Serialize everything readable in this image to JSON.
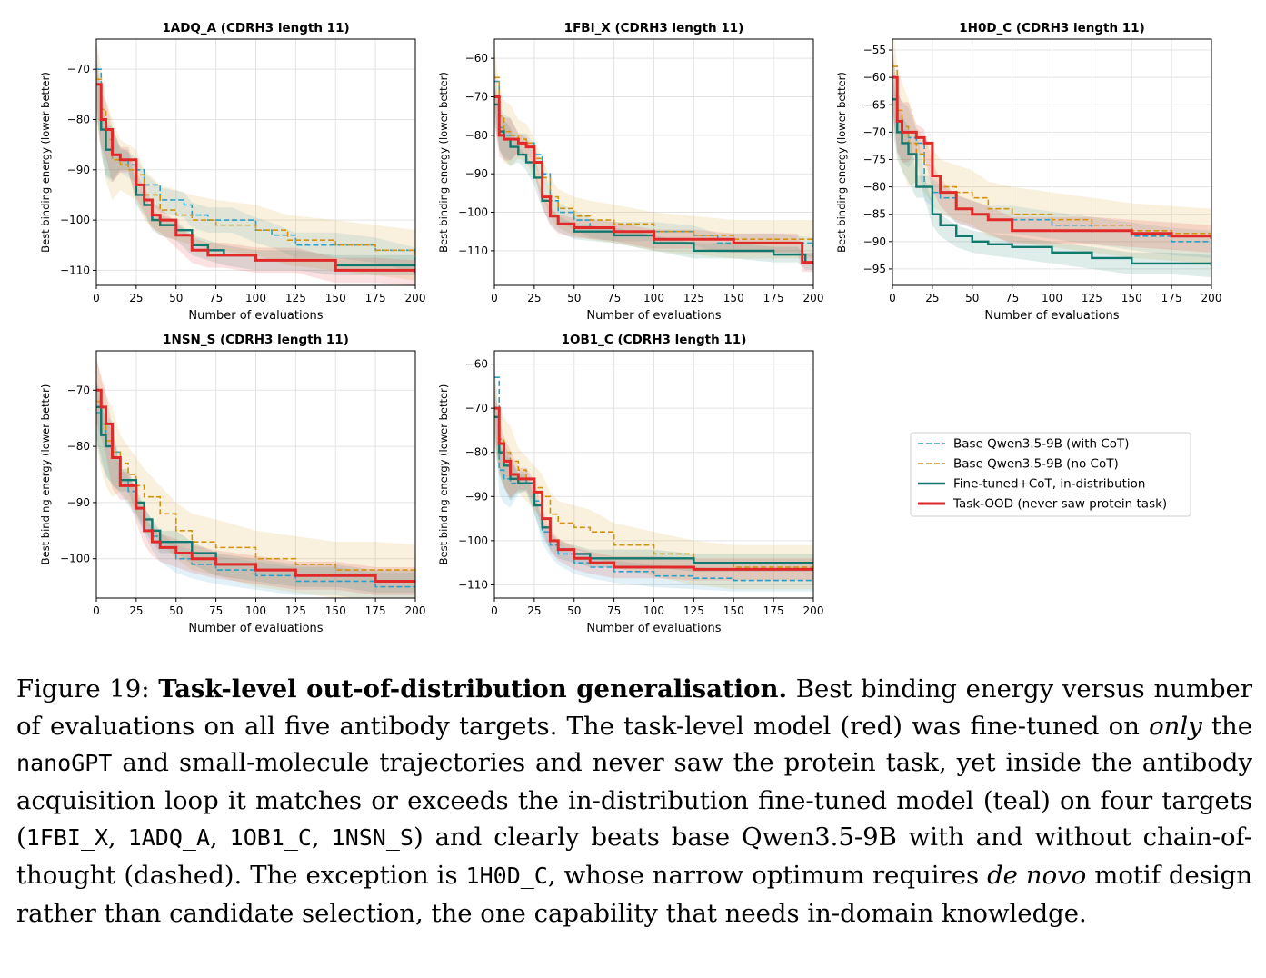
{
  "legend": {
    "entries": [
      {
        "label": "Base Qwen3.5-9B (with CoT)",
        "color": "#2a9fc9",
        "style": "dashed"
      },
      {
        "label": "Base Qwen3.5-9B (no CoT)",
        "color": "#d4920f",
        "style": "dashed"
      },
      {
        "label": "Fine-tuned+CoT, in-distribution",
        "color": "#12776d",
        "style": "solid"
      },
      {
        "label": "Task-OOD (never saw protein task)",
        "color": "#e02a2a",
        "style": "solid"
      }
    ]
  },
  "chart_data": [
    {
      "type": "line",
      "title": "1ADQ_A (CDRH3 length 11)",
      "xlabel": "Number of evaluations",
      "ylabel": "Best binding energy (lower better)",
      "xlim": [
        0,
        200
      ],
      "ylim": [
        -113,
        -64
      ],
      "xticks": [
        0,
        25,
        50,
        75,
        100,
        125,
        150,
        175,
        200
      ],
      "yticks": [
        -110,
        -100,
        -90,
        -80,
        -70
      ],
      "grid": true,
      "series": [
        {
          "name": "Base Qwen3.5-9B (with CoT)",
          "x": [
            0,
            3,
            6,
            10,
            15,
            20,
            25,
            30,
            40,
            55,
            60,
            70,
            85,
            100,
            110,
            125,
            150,
            175,
            200
          ],
          "y": [
            -70,
            -80,
            -86,
            -87,
            -88,
            -89,
            -90,
            -93,
            -96,
            -97,
            -99,
            -100,
            -100,
            -102,
            -103,
            -105,
            -105,
            -106,
            -108
          ]
        },
        {
          "name": "Base Qwen3.5-9B (no CoT)",
          "x": [
            0,
            3,
            6,
            10,
            15,
            20,
            25,
            30,
            40,
            50,
            60,
            75,
            100,
            120,
            150,
            175,
            200
          ],
          "y": [
            -72,
            -78,
            -84,
            -88,
            -89,
            -90,
            -91,
            -95,
            -98,
            -99,
            -100,
            -101,
            -102,
            -104,
            -105,
            -106,
            -107
          ]
        },
        {
          "name": "Fine-tuned+CoT, in-distribution",
          "x": [
            0,
            3,
            6,
            10,
            15,
            20,
            25,
            30,
            35,
            40,
            50,
            60,
            70,
            80,
            100,
            125,
            150,
            175,
            200
          ],
          "y": [
            -73,
            -82,
            -86,
            -87,
            -88,
            -88,
            -95,
            -97,
            -100,
            -101,
            -102,
            -105,
            -106,
            -107,
            -108,
            -108,
            -109,
            -109,
            -109
          ]
        },
        {
          "name": "Task-OOD (never saw protein task)",
          "x": [
            0,
            3,
            6,
            10,
            15,
            20,
            25,
            30,
            35,
            40,
            50,
            60,
            70,
            80,
            100,
            125,
            150,
            175,
            200
          ],
          "y": [
            -73,
            -80,
            -82,
            -87,
            -88,
            -88,
            -93,
            -96,
            -99,
            -100,
            -103,
            -106,
            -107,
            -107,
            -108,
            -108,
            -110,
            -110,
            -110.5
          ]
        }
      ]
    },
    {
      "type": "line",
      "title": "1FBI_X (CDRH3 length 11)",
      "xlabel": "Number of evaluations",
      "ylabel": "Best binding energy (lower better)",
      "xlim": [
        0,
        200
      ],
      "ylim": [
        -119,
        -55
      ],
      "xticks": [
        0,
        25,
        50,
        75,
        100,
        125,
        150,
        175,
        200
      ],
      "yticks": [
        -110,
        -100,
        -90,
        -80,
        -70,
        -60
      ],
      "grid": true,
      "series": [
        {
          "name": "Base Qwen3.5-9B (with CoT)",
          "x": [
            0,
            3,
            6,
            10,
            15,
            20,
            25,
            30,
            35,
            40,
            50,
            60,
            75,
            100,
            125,
            140,
            160,
            175,
            200
          ],
          "y": [
            -66,
            -78,
            -80,
            -81,
            -82,
            -82,
            -85,
            -90,
            -97,
            -100,
            -102,
            -104,
            -105,
            -105,
            -106,
            -108,
            -108,
            -108,
            -109
          ]
        },
        {
          "name": "Base Qwen3.5-9B (no CoT)",
          "x": [
            0,
            3,
            6,
            10,
            15,
            20,
            25,
            30,
            35,
            40,
            50,
            60,
            75,
            100,
            125,
            150,
            175,
            200
          ],
          "y": [
            -65,
            -75,
            -79,
            -80,
            -81,
            -82,
            -86,
            -91,
            -96,
            -99,
            -101,
            -102,
            -103,
            -105,
            -106,
            -107,
            -107,
            -107
          ]
        },
        {
          "name": "Fine-tuned+CoT, in-distribution",
          "x": [
            0,
            3,
            6,
            10,
            15,
            20,
            25,
            30,
            35,
            40,
            50,
            75,
            100,
            125,
            150,
            175,
            190,
            195,
            200
          ],
          "y": [
            -72,
            -79,
            -81,
            -83,
            -85,
            -87,
            -91,
            -97,
            -101,
            -103,
            -105,
            -106,
            -108,
            -110,
            -110,
            -111,
            -111,
            -113,
            -113
          ]
        },
        {
          "name": "Task-OOD (never saw protein task)",
          "x": [
            0,
            3,
            6,
            10,
            15,
            20,
            25,
            30,
            35,
            40,
            50,
            75,
            100,
            125,
            150,
            175,
            190,
            193,
            200
          ],
          "y": [
            -70,
            -80,
            -81,
            -81,
            -82,
            -83,
            -87,
            -96,
            -101,
            -103,
            -104,
            -105,
            -107,
            -107,
            -108,
            -108,
            -108,
            -113,
            -113
          ]
        }
      ]
    },
    {
      "type": "line",
      "title": "1H0D_C (CDRH3 length 11)",
      "xlabel": "Number of evaluations",
      "ylabel": "Best binding energy (lower better)",
      "xlim": [
        0,
        200
      ],
      "ylim": [
        -98,
        -53
      ],
      "xticks": [
        0,
        25,
        50,
        75,
        100,
        125,
        150,
        175,
        200
      ],
      "yticks": [
        -95,
        -90,
        -85,
        -80,
        -75,
        -70,
        -65,
        -60,
        -55
      ],
      "grid": true,
      "series": [
        {
          "name": "Base Qwen3.5-9B (with CoT)",
          "x": [
            0,
            3,
            6,
            10,
            15,
            20,
            25,
            30,
            40,
            50,
            60,
            75,
            100,
            125,
            150,
            175,
            200
          ],
          "y": [
            -60,
            -68,
            -70,
            -71,
            -72,
            -80,
            -81,
            -82,
            -84,
            -85,
            -86,
            -86,
            -87,
            -88,
            -89,
            -90,
            -90.5
          ]
        },
        {
          "name": "Base Qwen3.5-9B (no CoT)",
          "x": [
            0,
            3,
            6,
            10,
            15,
            20,
            25,
            30,
            40,
            50,
            60,
            75,
            100,
            125,
            150,
            175,
            200
          ],
          "y": [
            -58,
            -66,
            -69,
            -72,
            -74,
            -76,
            -78,
            -80,
            -81,
            -82,
            -84,
            -85,
            -86,
            -87,
            -88,
            -88.5,
            -89
          ]
        },
        {
          "name": "Fine-tuned+CoT, in-distribution",
          "x": [
            0,
            3,
            6,
            10,
            15,
            20,
            25,
            30,
            40,
            50,
            60,
            75,
            100,
            125,
            150,
            175,
            200
          ],
          "y": [
            -64,
            -70,
            -72,
            -74,
            -80,
            -80,
            -85,
            -87,
            -89,
            -90,
            -90.5,
            -91,
            -92,
            -93,
            -94,
            -94,
            -94.5
          ]
        },
        {
          "name": "Task-OOD (never saw protein task)",
          "x": [
            0,
            3,
            6,
            10,
            15,
            20,
            25,
            30,
            40,
            50,
            60,
            75,
            100,
            125,
            150,
            175,
            200
          ],
          "y": [
            -60,
            -68,
            -70,
            -70,
            -71,
            -72,
            -78,
            -81,
            -84,
            -85,
            -86,
            -88,
            -88,
            -88,
            -88.5,
            -89,
            -89.5
          ]
        }
      ]
    },
    {
      "type": "line",
      "title": "1NSN_S (CDRH3 length 11)",
      "xlabel": "Number of evaluations",
      "ylabel": "Best binding energy (lower better)",
      "xlim": [
        0,
        200
      ],
      "ylim": [
        -107,
        -63
      ],
      "xticks": [
        0,
        25,
        50,
        75,
        100,
        125,
        150,
        175,
        200
      ],
      "yticks": [
        -100,
        -90,
        -80,
        -70
      ],
      "grid": true,
      "series": [
        {
          "name": "Base Qwen3.5-9B (with CoT)",
          "x": [
            0,
            3,
            6,
            10,
            15,
            20,
            25,
            30,
            35,
            40,
            50,
            60,
            75,
            100,
            125,
            150,
            175,
            200
          ],
          "y": [
            -74,
            -76,
            -80,
            -81,
            -86,
            -88,
            -90,
            -93,
            -96,
            -98,
            -100,
            -101,
            -102,
            -103,
            -104,
            -104,
            -105,
            -105
          ]
        },
        {
          "name": "Base Qwen3.5-9B (no CoT)",
          "x": [
            0,
            3,
            6,
            10,
            15,
            20,
            25,
            30,
            40,
            50,
            60,
            75,
            100,
            125,
            150,
            175,
            200
          ],
          "y": [
            -72,
            -76,
            -79,
            -81,
            -83,
            -85,
            -87,
            -89,
            -92,
            -95,
            -97,
            -98,
            -100,
            -101,
            -102,
            -102,
            -102.5
          ]
        },
        {
          "name": "Fine-tuned+CoT, in-distribution",
          "x": [
            0,
            3,
            6,
            10,
            15,
            20,
            25,
            30,
            35,
            40,
            50,
            60,
            75,
            100,
            125,
            150,
            175,
            200
          ],
          "y": [
            -73,
            -78,
            -80,
            -82,
            -86,
            -86,
            -90,
            -93,
            -95,
            -97,
            -97,
            -99,
            -101,
            -102,
            -103,
            -103,
            -104,
            -104
          ]
        },
        {
          "name": "Task-OOD (never saw protein task)",
          "x": [
            0,
            3,
            6,
            10,
            15,
            20,
            25,
            30,
            35,
            40,
            50,
            60,
            75,
            100,
            125,
            150,
            175,
            200
          ],
          "y": [
            -70,
            -73,
            -76,
            -82,
            -87,
            -87,
            -91,
            -95,
            -97,
            -98,
            -99,
            -100,
            -101,
            -102,
            -103,
            -103,
            -104,
            -104
          ]
        }
      ]
    },
    {
      "type": "line",
      "title": "1OB1_C (CDRH3 length 11)",
      "xlabel": "Number of evaluations",
      "ylabel": "Best binding energy (lower better)",
      "xlim": [
        0,
        200
      ],
      "ylim": [
        -113,
        -57
      ],
      "xticks": [
        0,
        25,
        50,
        75,
        100,
        125,
        150,
        175,
        200
      ],
      "yticks": [
        -110,
        -100,
        -90,
        -80,
        -70,
        -60
      ],
      "grid": true,
      "series": [
        {
          "name": "Base Qwen3.5-9B (with CoT)",
          "x": [
            0,
            3,
            6,
            10,
            15,
            20,
            25,
            30,
            35,
            40,
            50,
            60,
            75,
            100,
            125,
            150,
            175,
            200
          ],
          "y": [
            -63,
            -84,
            -86,
            -87,
            -87,
            -86,
            -91,
            -98,
            -101,
            -103,
            -105,
            -106,
            -107,
            -108,
            -108.5,
            -109,
            -109,
            -109
          ]
        },
        {
          "name": "Base Qwen3.5-9B (no CoT)",
          "x": [
            0,
            3,
            6,
            10,
            15,
            20,
            25,
            30,
            35,
            40,
            50,
            60,
            75,
            100,
            125,
            150,
            175,
            200
          ],
          "y": [
            -70,
            -77,
            -80,
            -82,
            -84,
            -86,
            -88,
            -90,
            -94,
            -96,
            -97,
            -98,
            -101,
            -103,
            -105,
            -106,
            -106,
            -106
          ]
        },
        {
          "name": "Fine-tuned+CoT, in-distribution",
          "x": [
            0,
            3,
            6,
            10,
            15,
            20,
            25,
            30,
            35,
            40,
            50,
            60,
            75,
            100,
            125,
            150,
            175,
            200
          ],
          "y": [
            -72,
            -80,
            -83,
            -86,
            -87,
            -87,
            -92,
            -97,
            -100,
            -102,
            -103,
            -104,
            -104,
            -104,
            -105,
            -105,
            -105,
            -105
          ]
        },
        {
          "name": "Task-OOD (never saw protein task)",
          "x": [
            0,
            3,
            6,
            10,
            15,
            20,
            25,
            30,
            35,
            40,
            50,
            60,
            75,
            100,
            125,
            150,
            175,
            200
          ],
          "y": [
            -70,
            -78,
            -82,
            -85,
            -86,
            -86,
            -89,
            -95,
            -100,
            -102,
            -104,
            -105,
            -106,
            -106,
            -106.5,
            -106.5,
            -106.5,
            -106.5
          ]
        }
      ]
    }
  ],
  "caption": {
    "label": "Figure 19:",
    "bold_title": "Task-level out-of-distribution generalisation.",
    "t1": "Best binding energy versus number of evaluations on all five antibody targets. The task-level model (red) was fine-tuned on",
    "only": "only",
    "t2": "the",
    "nanogpt": "nanoGPT",
    "t3": "and small-molecule trajectories and never saw the protein task, yet inside the antibody acquisition loop it matches or exceeds the in-distribution fine-tuned model (teal) on four targets (",
    "target1": "1FBI_X",
    "sep1": ", ",
    "target2": "1ADQ_A",
    "sep2": ", ",
    "target3": "1OB1_C",
    "sep3": ", ",
    "target4": "1NSN_S",
    "t4": ") and clearly beats base Qwen3.5-9B with and without chain-of-thought (dashed). The exception is",
    "target5": "1H0D_C",
    "t5": ", whose narrow optimum requires",
    "de_novo": "de novo",
    "t6": "motif design rather than candidate selection, the one capability that needs in-domain knowledge."
  }
}
